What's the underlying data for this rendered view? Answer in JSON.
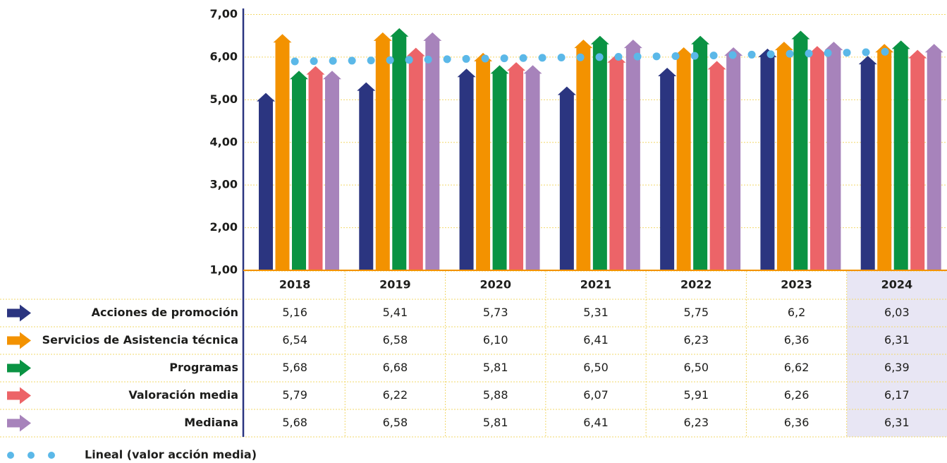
{
  "chart_data": {
    "type": "bar",
    "categories": [
      "2018",
      "2019",
      "2020",
      "2021",
      "2022",
      "2023",
      "2024"
    ],
    "ylim": [
      1,
      7
    ],
    "yticks": [
      {
        "value": 1,
        "label": "1,00"
      },
      {
        "value": 2,
        "label": "2,00"
      },
      {
        "value": 3,
        "label": "3,00"
      },
      {
        "value": 4,
        "label": "4,00"
      },
      {
        "value": 5,
        "label": "5,00"
      },
      {
        "value": 6,
        "label": "6,00"
      },
      {
        "value": 7,
        "label": "7,00"
      }
    ],
    "grid": true,
    "series": [
      {
        "name": "Acciones de promoción",
        "color": "#2b3580",
        "values": [
          5.16,
          5.41,
          5.73,
          5.31,
          5.75,
          6.2,
          6.03
        ],
        "value_labels": [
          "5,16",
          "5,41",
          "5,73",
          "5,31",
          "5,75",
          "6,2",
          "6,03"
        ]
      },
      {
        "name": "Servicios de Asistencia técnica",
        "color": "#f39200",
        "values": [
          6.54,
          6.58,
          6.1,
          6.41,
          6.23,
          6.36,
          6.31
        ],
        "value_labels": [
          "6,54",
          "6,58",
          "6,10",
          "6,41",
          "6,23",
          "6,36",
          "6,31"
        ]
      },
      {
        "name": "Programas",
        "color": "#0a9343",
        "values": [
          5.68,
          6.68,
          5.81,
          6.5,
          6.5,
          6.62,
          6.39
        ],
        "value_labels": [
          "5,68",
          "6,68",
          "5,81",
          "6,50",
          "6,50",
          "6,62",
          "6,39"
        ]
      },
      {
        "name": "Valoración media",
        "color": "#ec6468",
        "values": [
          5.79,
          6.22,
          5.88,
          6.07,
          5.91,
          6.26,
          6.17
        ],
        "value_labels": [
          "5,79",
          "6,22",
          "5,88",
          "6,07",
          "5,91",
          "6,26",
          "6,17"
        ]
      },
      {
        "name": "Mediana",
        "color": "#a783bb",
        "values": [
          5.68,
          6.58,
          5.81,
          6.41,
          6.23,
          6.36,
          6.31
        ],
        "value_labels": [
          "5,68",
          "6,58",
          "5,81",
          "6,41",
          "6,23",
          "6,36",
          "6,31"
        ]
      }
    ],
    "trend": {
      "name": "Lineal (valor acción media)",
      "color": "#5bb8e8",
      "values": [
        5.9,
        5.93,
        5.97,
        6.0,
        6.03,
        6.08,
        6.13
      ]
    }
  }
}
